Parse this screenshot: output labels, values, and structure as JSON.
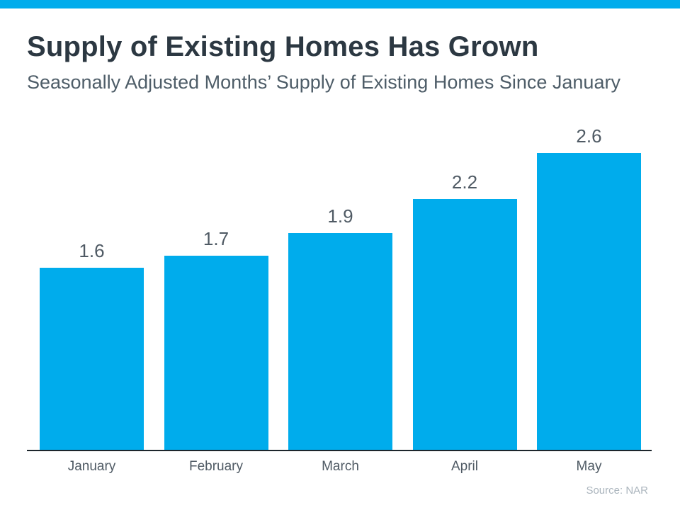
{
  "header": {
    "title": "Supply of Existing Homes Has Grown",
    "subtitle": "Seasonally Adjusted Months’ Supply of Existing Homes Since January"
  },
  "footer": {
    "source": "Source: NAR"
  },
  "colors": {
    "accent_cyan": "#00ACEC",
    "title_dark": "#2c3842",
    "subtitle_gray": "#4e5d68",
    "label_gray": "#4f5a64",
    "axis_dark": "#1d262c",
    "source_light_gray": "#abb5bd"
  },
  "chart_data": {
    "type": "bar",
    "title": "Supply of Existing Homes Has Grown",
    "subtitle": "Seasonally Adjusted Months’ Supply of Existing Homes Since January",
    "categories": [
      "January",
      "February",
      "March",
      "April",
      "May"
    ],
    "values": [
      1.6,
      1.7,
      1.9,
      2.2,
      2.6
    ],
    "value_labels": [
      "1.6",
      "1.7",
      "1.9",
      "2.2",
      "2.6"
    ],
    "xlabel": "",
    "ylabel": "",
    "ylim": [
      0,
      2.8
    ],
    "grid": false,
    "legend": false,
    "bar_color": "#00ACEC",
    "source": "Source: NAR"
  }
}
